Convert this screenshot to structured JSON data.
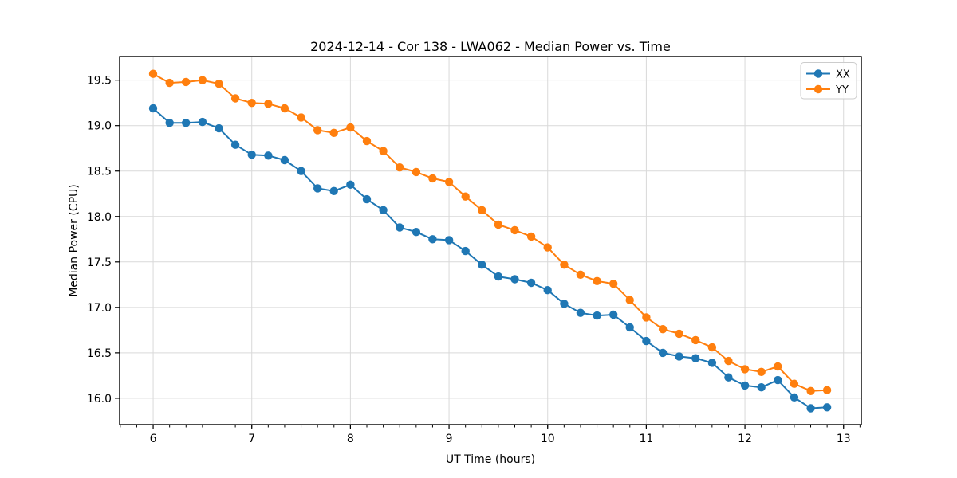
{
  "chart_data": {
    "type": "line",
    "title": "2024-12-14 - Cor 138 - LWA062 - Median Power vs. Time",
    "xlabel": "UT Time (hours)",
    "ylabel": "Median Power (CPU)",
    "xlim": [
      5.66,
      13.18
    ],
    "ylim": [
      15.71,
      19.76
    ],
    "x_major_ticks": [
      6,
      7,
      8,
      9,
      10,
      11,
      12,
      13
    ],
    "x_minor_tick_step": 0.1666667,
    "y_major_ticks": [
      16.0,
      16.5,
      17.0,
      17.5,
      18.0,
      18.5,
      19.0,
      19.5
    ],
    "grid": true,
    "legend_position": "upper right",
    "x": [
      6.0,
      6.167,
      6.333,
      6.5,
      6.667,
      6.833,
      7.0,
      7.167,
      7.333,
      7.5,
      7.667,
      7.833,
      8.0,
      8.167,
      8.333,
      8.5,
      8.667,
      8.833,
      9.0,
      9.167,
      9.333,
      9.5,
      9.667,
      9.833,
      10.0,
      10.167,
      10.333,
      10.5,
      10.667,
      10.833,
      11.0,
      11.167,
      11.333,
      11.5,
      11.667,
      11.833,
      12.0,
      12.167,
      12.333,
      12.5,
      12.667,
      12.833
    ],
    "series": [
      {
        "name": "XX",
        "color": "#1f77b4",
        "marker": "circle",
        "values": [
          19.19,
          19.03,
          19.03,
          19.04,
          18.97,
          18.79,
          18.68,
          18.67,
          18.62,
          18.5,
          18.31,
          18.28,
          18.35,
          18.19,
          18.07,
          17.88,
          17.83,
          17.75,
          17.74,
          17.62,
          17.47,
          17.34,
          17.31,
          17.27,
          17.19,
          17.04,
          16.94,
          16.91,
          16.92,
          16.78,
          16.63,
          16.5,
          16.46,
          16.44,
          16.39,
          16.23,
          16.14,
          16.12,
          16.2,
          16.01,
          15.89,
          15.9
        ]
      },
      {
        "name": "YY",
        "color": "#ff7f0e",
        "marker": "circle",
        "values": [
          19.57,
          19.47,
          19.48,
          19.5,
          19.46,
          19.3,
          19.25,
          19.24,
          19.19,
          19.09,
          18.95,
          18.92,
          18.98,
          18.83,
          18.72,
          18.54,
          18.49,
          18.42,
          18.38,
          18.22,
          18.07,
          17.91,
          17.85,
          17.78,
          17.66,
          17.47,
          17.36,
          17.29,
          17.26,
          17.08,
          16.89,
          16.76,
          16.71,
          16.64,
          16.56,
          16.41,
          16.32,
          16.29,
          16.35,
          16.16,
          16.08,
          16.09
        ]
      }
    ],
    "colors": {
      "background": "#ffffff",
      "grid": "#d9d9d9",
      "spine": "#000000",
      "tick": "#000000",
      "legend_border": "#cccccc",
      "legend_background": "#ffffff"
    }
  }
}
